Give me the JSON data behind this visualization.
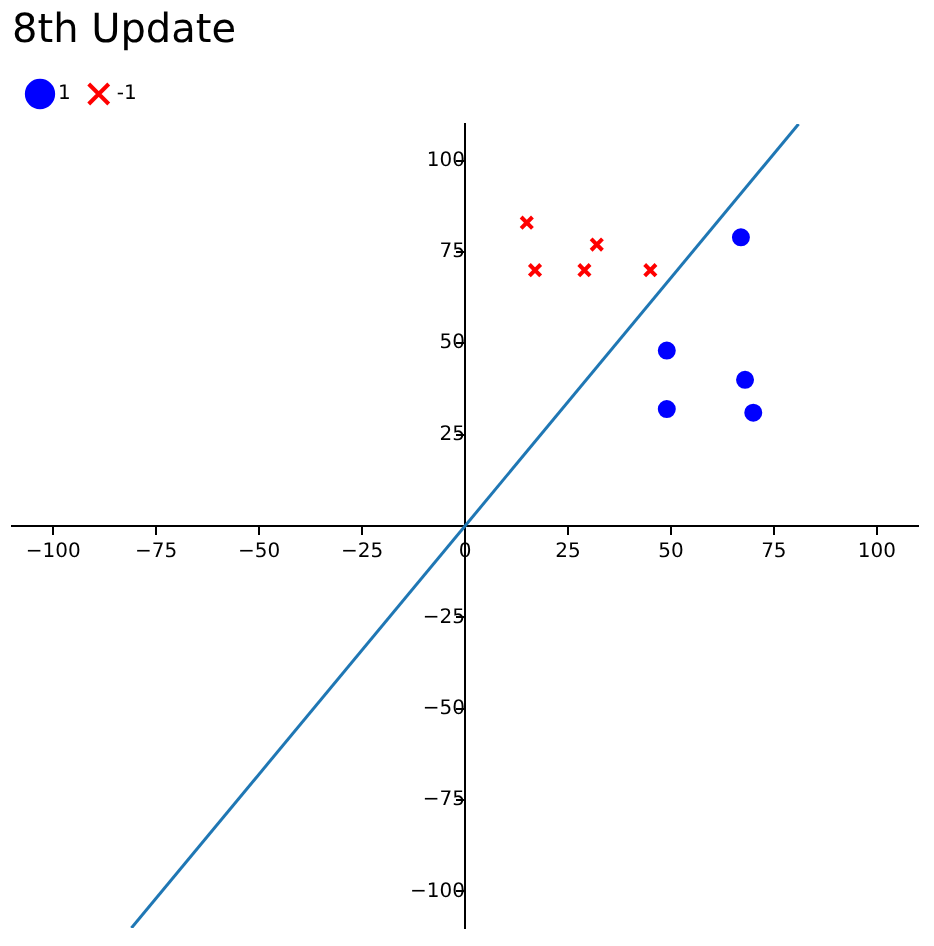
{
  "chart_data": {
    "type": "scatter",
    "title": "8th Update",
    "xlim": [
      -110,
      110
    ],
    "ylim": [
      -110,
      110
    ],
    "xticks": [
      -100,
      -75,
      -50,
      -25,
      0,
      25,
      50,
      75,
      100
    ],
    "yticks": [
      -100,
      -75,
      -50,
      -25,
      25,
      50,
      75,
      100
    ],
    "grid": false,
    "legend": "top left",
    "series": [
      {
        "name": "1",
        "color": "#0000ff",
        "marker": "circle",
        "x": [
          67,
          49,
          49,
          68,
          70
        ],
        "values": [
          79,
          48,
          32,
          40,
          31
        ]
      },
      {
        "name": "-1",
        "color": "#ff0000",
        "marker": "cross",
        "x": [
          15,
          17,
          32,
          29,
          45
        ],
        "values": [
          83,
          70,
          77,
          70,
          70
        ]
      },
      {
        "type": "line",
        "color": "#1f77b4",
        "marker": "none",
        "x": [
          -81,
          81
        ],
        "values": [
          -110,
          110
        ]
      }
    ]
  }
}
